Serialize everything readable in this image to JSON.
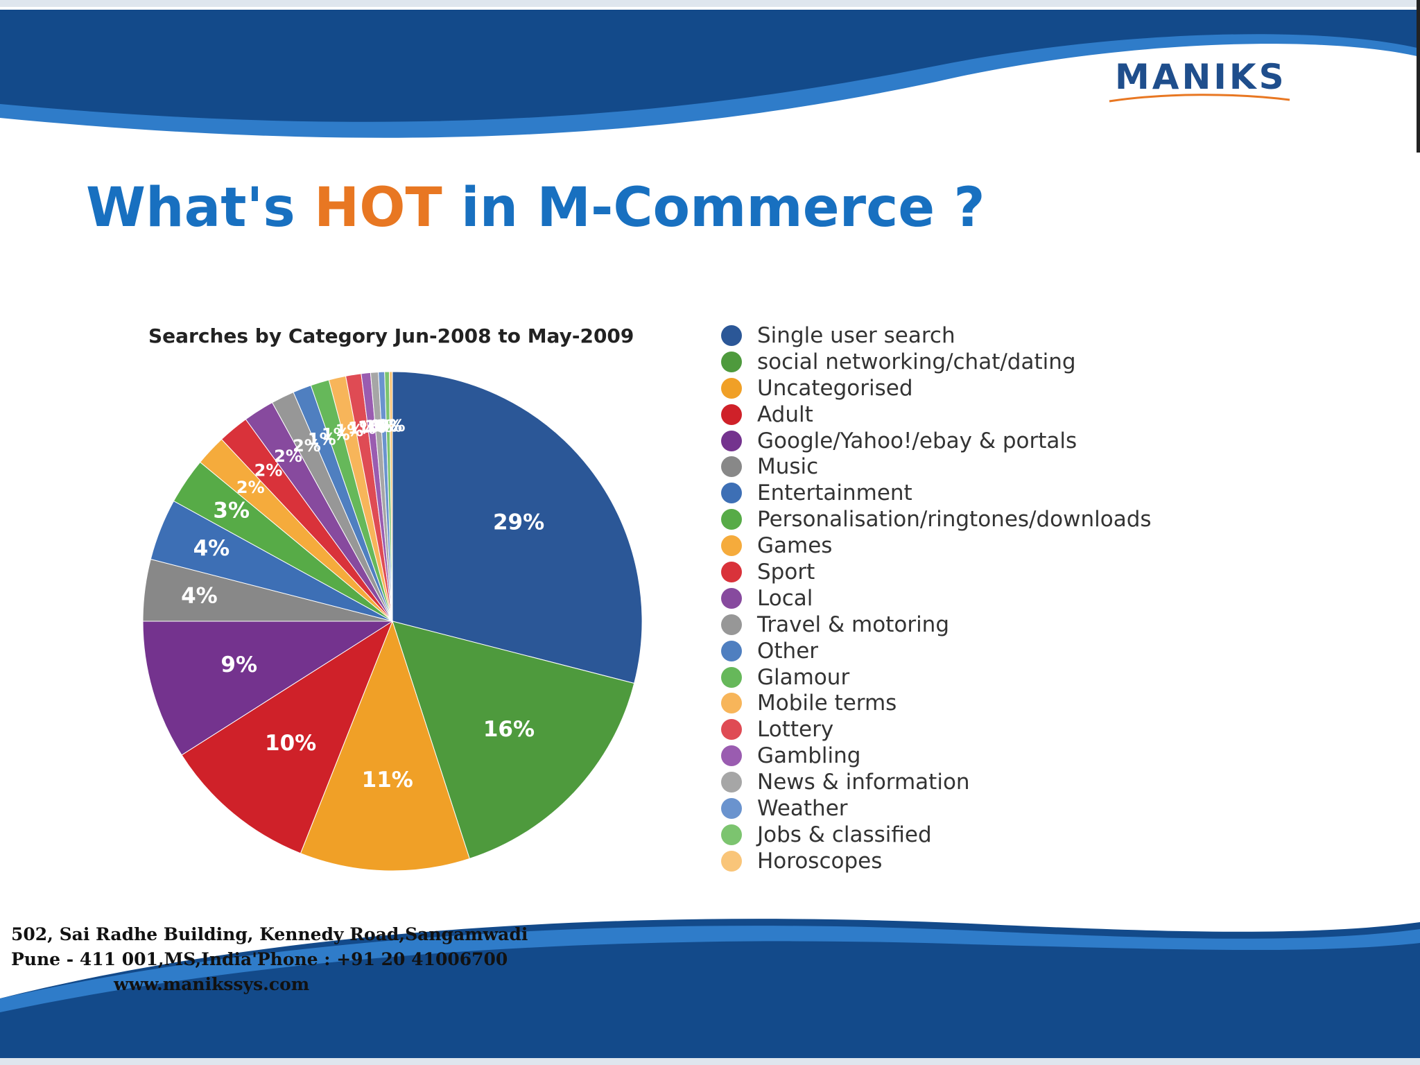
{
  "slide": {
    "title_before": "What's ",
    "title_highlight": "HOT",
    "title_after": " in M-Commerce ?",
    "logo": "MANIKS"
  },
  "footer": {
    "address_line1": "502, Sai Radhe Building, Kennedy Road,Sangamwadi",
    "address_line2": "Pune - 411 001,MS,India'Phone : +91 20 41006700",
    "website": "www.manikssys.com"
  },
  "colors": {
    "title_blue": "#1870c0",
    "title_orange": "#e87722",
    "banner_blue": "#1c5aa0"
  },
  "chart_data": {
    "type": "pie",
    "title": "Searches by Category Jun-2008 to May-2009",
    "legend_position": "right",
    "label_format": "percent",
    "slices": [
      {
        "name": "Single user search",
        "value": 29,
        "color": "#2b5797"
      },
      {
        "name": "social networking/chat/dating",
        "value": 16,
        "color": "#4e9a3d"
      },
      {
        "name": "Uncategorised",
        "value": 11,
        "color": "#f0a027"
      },
      {
        "name": "Adult",
        "value": 10,
        "color": "#cf2129"
      },
      {
        "name": "Google/Yahoo!/ebay & portals",
        "value": 9,
        "color": "#74338e"
      },
      {
        "name": "Music",
        "value": 4,
        "color": "#888888"
      },
      {
        "name": "Entertainment",
        "value": 4,
        "color": "#3d6fb5"
      },
      {
        "name": "Personalisation/ringtones/downloads",
        "value": 3,
        "color": "#57ab47"
      },
      {
        "name": "Games",
        "value": 2,
        "color": "#f5ab3c"
      },
      {
        "name": "Sport",
        "value": 2,
        "color": "#d9323a"
      },
      {
        "name": "Local",
        "value": 2,
        "color": "#874a9e"
      },
      {
        "name": "Travel & motoring",
        "value": 1.5,
        "color": "#979797"
      },
      {
        "name": "Other",
        "value": 1.2,
        "color": "#4f7fc0"
      },
      {
        "name": "Glamour",
        "value": 1.2,
        "color": "#66b85a"
      },
      {
        "name": "Mobile terms",
        "value": 1.1,
        "color": "#f7b55a"
      },
      {
        "name": "Lottery",
        "value": 1,
        "color": "#df4b54"
      },
      {
        "name": "Gambling",
        "value": 0.6,
        "color": "#9a5cb0"
      },
      {
        "name": "News & information",
        "value": 0.5,
        "color": "#a6a6a6"
      },
      {
        "name": "Weather",
        "value": 0.4,
        "color": "#6a93ce"
      },
      {
        "name": "Jobs & classified",
        "value": 0.3,
        "color": "#7cc46f"
      },
      {
        "name": "Horoscopes",
        "value": 0.2,
        "color": "#f9c579"
      }
    ]
  }
}
